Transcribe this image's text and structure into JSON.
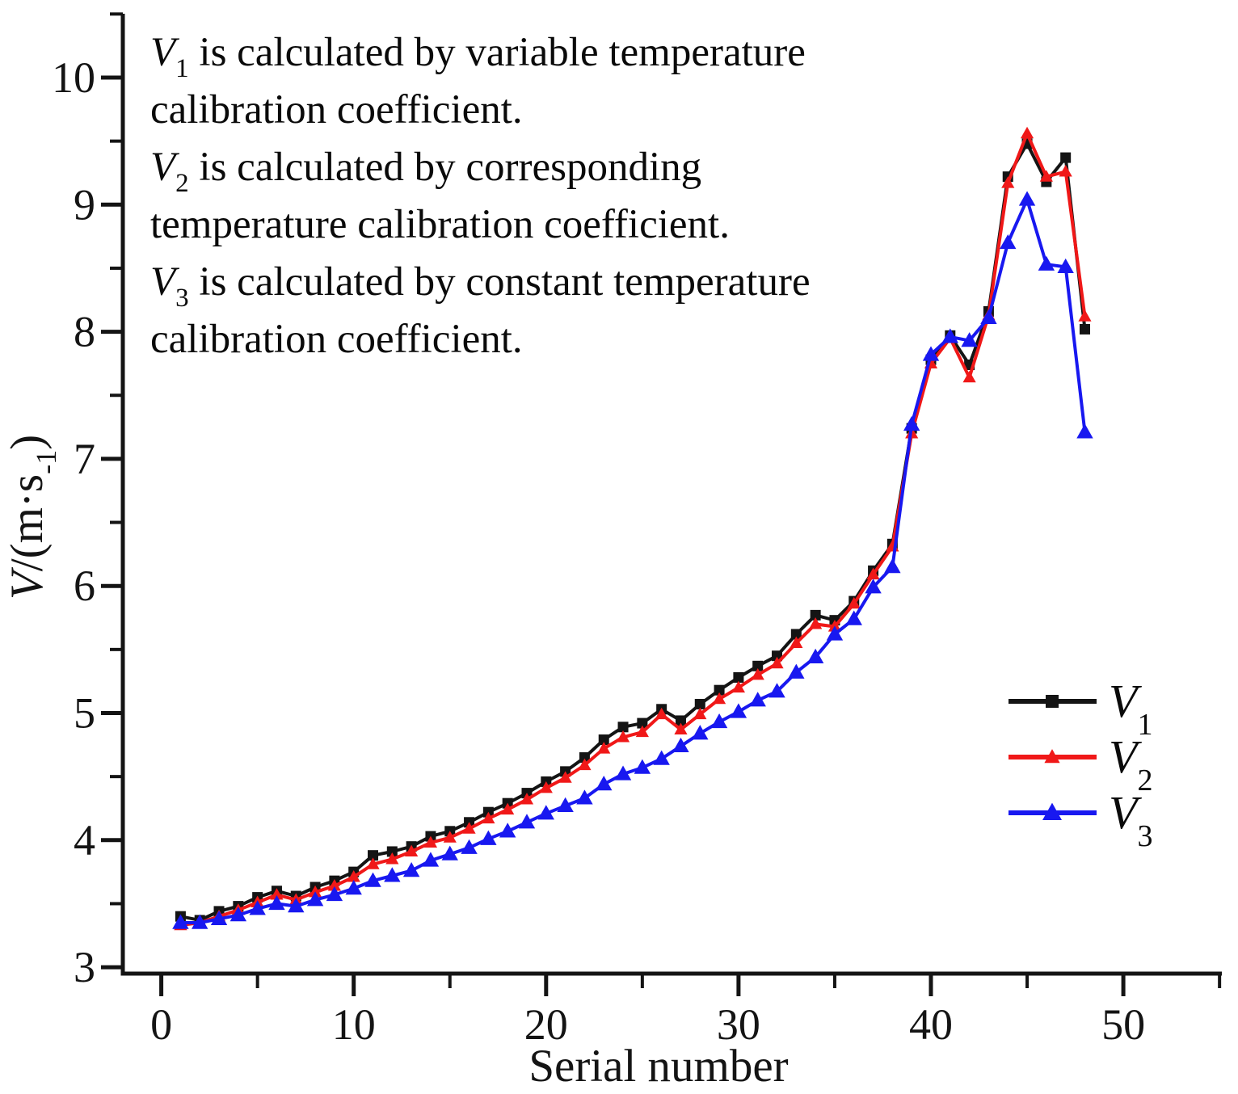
{
  "figure": {
    "xlabel": "Serial number",
    "ylabel_segments": [
      {
        "t": "V",
        "s": "v"
      },
      {
        "t": "/(m·s",
        "s": "n"
      },
      {
        "t": "-1",
        "s": "sup"
      },
      {
        "t": ")",
        "s": "n"
      }
    ],
    "x_tick_labels": [
      "0",
      "10",
      "20",
      "30",
      "40",
      "50"
    ],
    "y_tick_labels": [
      "3",
      "4",
      "5",
      "6",
      "7",
      "8",
      "9",
      "10"
    ]
  },
  "annotation": {
    "lines": [
      [
        {
          "t": "V",
          "s": "v"
        },
        {
          "t": "1",
          "s": "sub"
        },
        {
          "t": " is calculated by variable temperature",
          "s": "n"
        }
      ],
      [
        {
          "t": "calibration coefficient.",
          "s": "n"
        }
      ],
      [
        {
          "t": "V",
          "s": "v"
        },
        {
          "t": "2",
          "s": "sub"
        },
        {
          "t": " is calculated by corresponding",
          "s": "n"
        }
      ],
      [
        {
          "t": "temperature calibration coefficient.",
          "s": "n"
        }
      ],
      [
        {
          "t": "V",
          "s": "v"
        },
        {
          "t": "3",
          "s": "sub"
        },
        {
          "t": " is calculated by constant temperature",
          "s": "n"
        }
      ],
      [
        {
          "t": "calibration coefficient.",
          "s": "n"
        }
      ]
    ]
  },
  "legend": [
    {
      "main": "V",
      "sub": "1",
      "color": "#141414",
      "marker": "square"
    },
    {
      "main": "V",
      "sub": "2",
      "color": "#f01818",
      "marker": "triangle"
    },
    {
      "main": "V",
      "sub": "3",
      "color": "#1818f0",
      "marker": "triangle"
    }
  ],
  "chart_data": {
    "type": "line",
    "title": "",
    "xlabel": "Serial number",
    "ylabel": "V/(m·s⁻¹)",
    "xlim": [
      -2.1,
      55.1
    ],
    "ylim": [
      3,
      10.5
    ],
    "grid": false,
    "legend_position": "right-middle",
    "x_ticks_major": [
      0,
      10,
      20,
      30,
      40,
      50
    ],
    "x_ticks_minor": [
      5,
      15,
      25,
      35,
      45,
      55
    ],
    "y_ticks_major": [
      3,
      4,
      5,
      6,
      7,
      8,
      9,
      10
    ],
    "y_ticks_minor": [
      3.5,
      4.5,
      5.5,
      6.5,
      7.5,
      8.5,
      9.5,
      10.5
    ],
    "x": [
      1,
      2,
      3,
      4,
      5,
      6,
      7,
      8,
      9,
      10,
      11,
      12,
      13,
      14,
      15,
      16,
      17,
      18,
      19,
      20,
      21,
      22,
      23,
      24,
      25,
      26,
      27,
      28,
      29,
      30,
      31,
      32,
      33,
      34,
      35,
      36,
      37,
      38,
      39,
      40,
      41,
      42,
      43,
      44,
      45,
      46,
      47,
      48
    ],
    "series": [
      {
        "name": "V1",
        "color": "#141414",
        "marker": "square",
        "values": [
          3.4,
          3.37,
          3.44,
          3.48,
          3.55,
          3.6,
          3.56,
          3.63,
          3.68,
          3.75,
          3.88,
          3.91,
          3.95,
          4.03,
          4.07,
          4.14,
          4.22,
          4.29,
          4.37,
          4.46,
          4.54,
          4.65,
          4.79,
          4.89,
          4.92,
          5.03,
          4.94,
          5.07,
          5.18,
          5.28,
          5.37,
          5.45,
          5.62,
          5.77,
          5.73,
          5.88,
          6.12,
          6.33,
          7.24,
          7.78,
          7.97,
          7.74,
          8.16,
          9.22,
          9.48,
          9.18,
          9.37,
          8.02
        ]
      },
      {
        "name": "V2",
        "color": "#f01818",
        "marker": "triangle",
        "values": [
          3.33,
          3.35,
          3.4,
          3.45,
          3.51,
          3.57,
          3.53,
          3.59,
          3.64,
          3.71,
          3.81,
          3.85,
          3.91,
          3.98,
          4.02,
          4.09,
          4.17,
          4.24,
          4.32,
          4.41,
          4.49,
          4.59,
          4.72,
          4.81,
          4.85,
          4.99,
          4.87,
          4.99,
          5.11,
          5.2,
          5.3,
          5.39,
          5.55,
          5.7,
          5.68,
          5.86,
          6.09,
          6.31,
          7.2,
          7.75,
          7.95,
          7.64,
          8.13,
          9.17,
          9.56,
          9.22,
          9.26,
          8.12
        ]
      },
      {
        "name": "V3",
        "color": "#1818f0",
        "marker": "triangle",
        "values": [
          3.35,
          3.35,
          3.38,
          3.41,
          3.46,
          3.5,
          3.48,
          3.53,
          3.57,
          3.62,
          3.68,
          3.72,
          3.76,
          3.84,
          3.89,
          3.94,
          4.01,
          4.07,
          4.14,
          4.21,
          4.27,
          4.33,
          4.44,
          4.52,
          4.57,
          4.64,
          4.74,
          4.84,
          4.93,
          5.01,
          5.1,
          5.17,
          5.32,
          5.44,
          5.62,
          5.74,
          5.99,
          6.15,
          7.27,
          7.82,
          7.96,
          7.93,
          8.11,
          8.7,
          9.04,
          8.53,
          8.51,
          7.21
        ]
      }
    ]
  }
}
